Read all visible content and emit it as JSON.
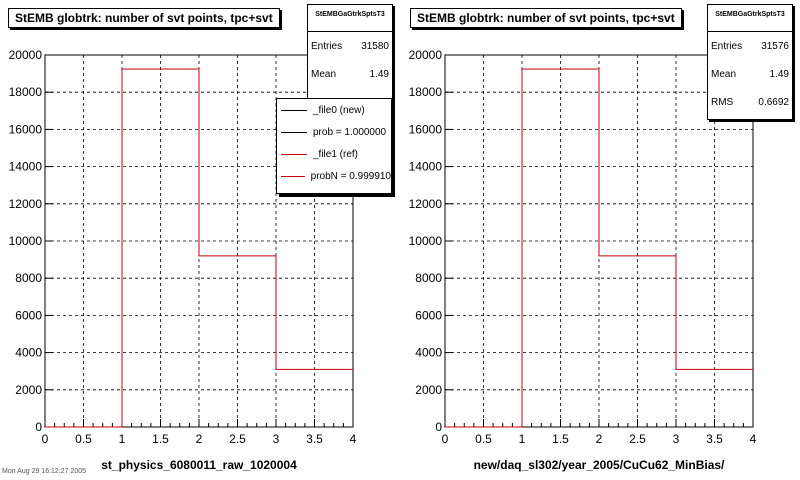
{
  "footer_text": "Mon Aug 29 16:12:27 2005",
  "panels": [
    {
      "title": "StEMB globtrk: number of svt points, tpc+svt",
      "stats": {
        "name": "StEMBGaGtrkSptsT3",
        "rows": [
          {
            "label": "Entries",
            "value": "31580"
          },
          {
            "label": "Mean",
            "value": "1.49"
          }
        ]
      },
      "legend": [
        {
          "label": "_file0 (new)",
          "color": "#000000"
        },
        {
          "label": "prob = 1.000000",
          "color": "#000000"
        },
        {
          "label": "_file1 (ref)",
          "color": "#cc0000"
        },
        {
          "label": "probN = 0.999910",
          "color": "#cc0000"
        }
      ]
    },
    {
      "title": "StEMB globtrk: number of svt points, tpc+svt",
      "stats": {
        "name": "StEMBGaGtrkSptsT3",
        "rows": [
          {
            "label": "Entries",
            "value": "31576"
          },
          {
            "label": "Mean",
            "value": "1.49"
          },
          {
            "label": "RMS",
            "value": "0.6692"
          }
        ]
      },
      "legend": []
    }
  ],
  "chart_data": [
    {
      "type": "bar",
      "title": "StEMB globtrk: number of svt points, tpc+svt",
      "xlabel": "st_physics_6080011_raw_1020004",
      "ylabel": "",
      "xlim": [
        0,
        4
      ],
      "ylim": [
        0,
        20000
      ],
      "xticks": [
        "0",
        "0.5",
        "1",
        "1.5",
        "2",
        "2.5",
        "3",
        "3.5",
        "4"
      ],
      "yticks": [
        "0",
        "2000",
        "4000",
        "6000",
        "8000",
        "10000",
        "12000",
        "14000",
        "16000",
        "18000",
        "20000"
      ],
      "bin_edges": [
        0,
        1,
        2,
        3,
        4
      ],
      "values": [
        0,
        19250,
        9200,
        3100
      ],
      "grid": true,
      "line_color": "#cc0000"
    },
    {
      "type": "bar",
      "title": "StEMB globtrk: number of svt points, tpc+svt",
      "xlabel": "new/daq_sl302/year_2005/CuCu62_MinBias/",
      "ylabel": "",
      "xlim": [
        0,
        4
      ],
      "ylim": [
        0,
        20000
      ],
      "xticks": [
        "0",
        "0.5",
        "1",
        "1.5",
        "2",
        "2.5",
        "3",
        "3.5",
        "4"
      ],
      "yticks": [
        "0",
        "2000",
        "4000",
        "6000",
        "8000",
        "10000",
        "12000",
        "14000",
        "16000",
        "18000",
        "20000"
      ],
      "bin_edges": [
        0,
        1,
        2,
        3,
        4
      ],
      "values": [
        0,
        19250,
        9200,
        3100
      ],
      "grid": true,
      "line_color": "#cc0000"
    }
  ]
}
